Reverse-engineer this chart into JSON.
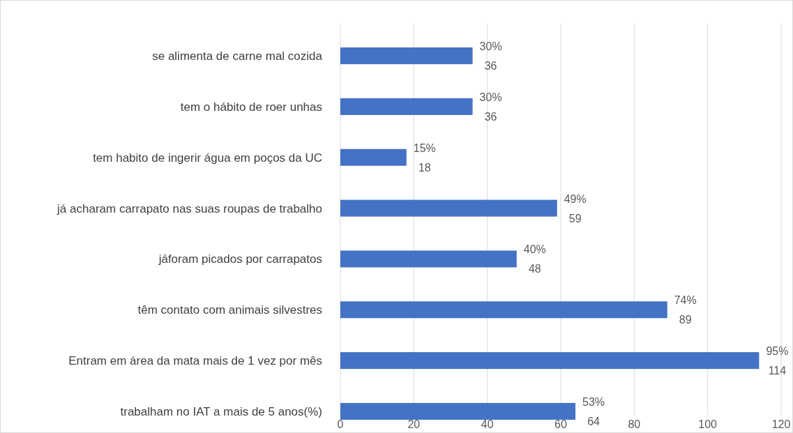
{
  "chart_data": {
    "type": "bar",
    "orientation": "horizontal",
    "categories": [
      "se alimenta de carne mal cozida",
      "tem o hábito de roer unhas",
      "tem habito de ingerir água em poços da UC",
      "já acharam carrapato nas suas roupas de trabalho",
      "jáforam picados por carrapatos",
      "têm contato com animais silvestres",
      "Entram em área da mata mais de 1 vez por mês",
      "trabalham no IAT a mais de 5 anos(%)"
    ],
    "values": [
      36,
      36,
      18,
      59,
      48,
      89,
      114,
      64
    ],
    "value_labels": [
      "30%\n36",
      "30%\n36",
      "15%\n18",
      "49%\n59",
      "40%\n48",
      "74%\n89",
      "95%\n114",
      "53%\n64"
    ],
    "color": "#4472c4",
    "xlim": [
      0,
      120
    ],
    "xticks": [
      0,
      20,
      40,
      60,
      80,
      100,
      120
    ],
    "grid": "x"
  }
}
